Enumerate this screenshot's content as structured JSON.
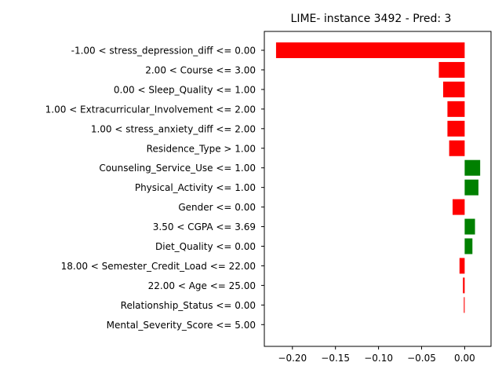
{
  "chart_data": {
    "type": "bar",
    "orientation": "horizontal",
    "title": "LIME- instance 3492 - Pred: 3",
    "xlabel": "",
    "ylabel": "",
    "xlim": [
      -0.2326,
      0.0306
    ],
    "xticks": [
      -0.2,
      -0.15,
      -0.1,
      -0.05,
      0.0
    ],
    "xtick_labels": [
      "−0.20",
      "−0.15",
      "−0.10",
      "−0.05",
      "0.00"
    ],
    "grid": false,
    "colors": {
      "positive": "#008000",
      "negative": "#ff0000"
    },
    "categories": [
      "-1.00 < stress_depression_diff <= 0.00",
      "2.00 < Course <= 3.00",
      "0.00 < Sleep_Quality <= 1.00",
      "1.00 < Extracurricular_Involvement <= 2.00",
      "1.00 < stress_anxiety_diff <= 2.00",
      "Residence_Type > 1.00",
      "Counseling_Service_Use <= 1.00",
      "Physical_Activity <= 1.00",
      "Gender <= 0.00",
      "3.50 < CGPA <= 3.69",
      "Diet_Quality <= 0.00",
      "18.00 < Semester_Credit_Load <= 22.00",
      "22.00 < Age <= 25.00",
      "Relationship_Status <= 0.00",
      "Mental_Severity_Score <= 5.00"
    ],
    "values": [
      -0.219,
      -0.03,
      -0.025,
      -0.02,
      -0.02,
      -0.018,
      0.018,
      0.016,
      -0.014,
      0.012,
      0.009,
      -0.006,
      -0.002,
      -0.001,
      0.0
    ]
  }
}
